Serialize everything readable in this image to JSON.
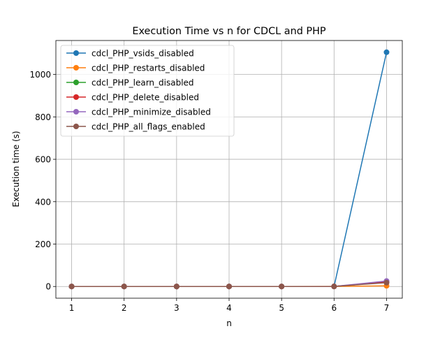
{
  "chart_data": {
    "type": "line",
    "title": "Execution Time vs n for CDCL and PHP",
    "xlabel": "n",
    "ylabel": "Execution time (s)",
    "x": [
      1,
      2,
      3,
      4,
      5,
      6,
      7
    ],
    "xlim": [
      0.7,
      7.3
    ],
    "ylim": [
      -55.3,
      1160.3
    ],
    "xticks": [
      1,
      2,
      3,
      4,
      5,
      6,
      7
    ],
    "yticks": [
      0,
      200,
      400,
      600,
      800,
      1000
    ],
    "grid": true,
    "legend_position": "top-left",
    "series": [
      {
        "name": "cdcl_PHP_vsids_disabled",
        "color": "#1f77b4",
        "values": [
          0,
          0,
          0,
          0,
          0,
          0.2,
          1105
        ]
      },
      {
        "name": "cdcl_PHP_restarts_disabled",
        "color": "#ff7f0e",
        "values": [
          0,
          0,
          0,
          0,
          0,
          0.1,
          3
        ]
      },
      {
        "name": "cdcl_PHP_learn_disabled",
        "color": "#2ca02c",
        "values": [
          0,
          0,
          0,
          0,
          0,
          0.1,
          20
        ]
      },
      {
        "name": "cdcl_PHP_delete_disabled",
        "color": "#d62728",
        "values": [
          0,
          0,
          0,
          0,
          0,
          0.1,
          22
        ]
      },
      {
        "name": "cdcl_PHP_minimize_disabled",
        "color": "#9467bd",
        "values": [
          0,
          0,
          0,
          0,
          0,
          0.1,
          26
        ]
      },
      {
        "name": "cdcl_PHP_all_flags_enabled",
        "color": "#8c564b",
        "values": [
          0,
          0,
          0,
          0,
          0,
          0.1,
          18
        ]
      }
    ]
  }
}
